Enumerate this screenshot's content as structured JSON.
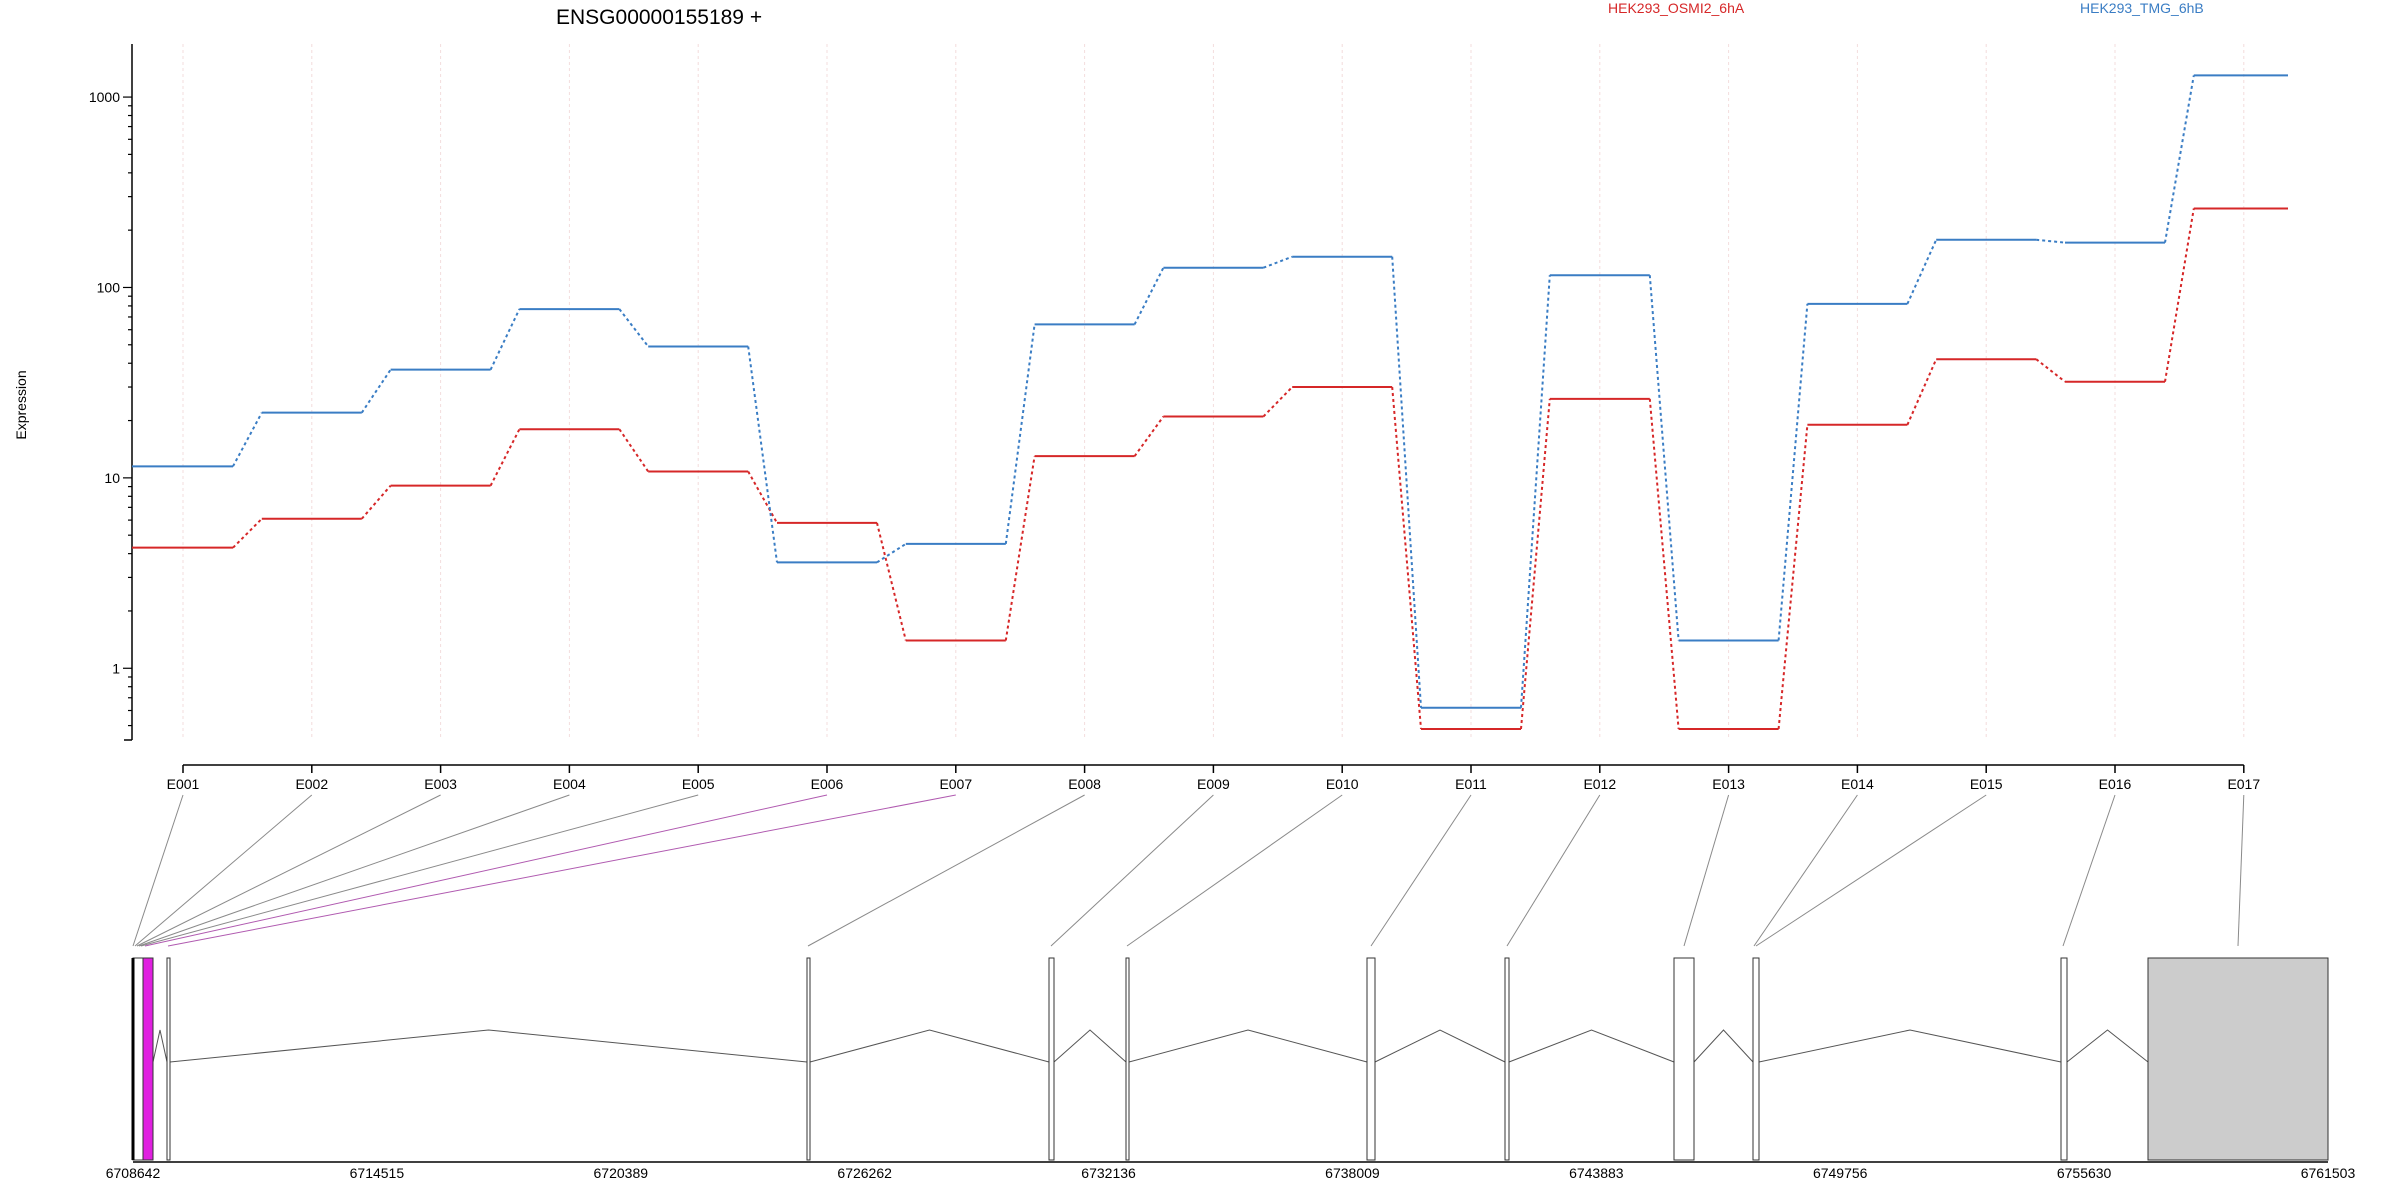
{
  "chart_data": {
    "type": "line",
    "title": "ENSG00000155189 +",
    "xlabel": "",
    "ylabel": "Expression",
    "yscale": "log",
    "ylim": [
      0.42,
      1900
    ],
    "yticks": [
      1,
      10,
      100,
      1000
    ],
    "ytick_labels": [
      "1",
      "10",
      "100",
      "1000"
    ],
    "grid": "vertical dotted at exon positions",
    "legend": "top, horizontal",
    "categories": [
      "E001",
      "E002",
      "E003",
      "E004",
      "E005",
      "E006",
      "E007",
      "E008",
      "E009",
      "E010",
      "E011",
      "E012",
      "E013",
      "E014",
      "E015",
      "E016",
      "E017"
    ],
    "series": [
      {
        "name": "HEK293_OSMI2_6hA",
        "color": "#d62728",
        "values": [
          4.3,
          6.1,
          9.1,
          18,
          10.8,
          5.8,
          1.4,
          13,
          21,
          30,
          0.48,
          26,
          0.48,
          19,
          42,
          32,
          260
        ]
      },
      {
        "name": "HEK293_TMG_6hB",
        "color": "#3a7dc4",
        "values": [
          11.5,
          22,
          37,
          77,
          49,
          3.6,
          4.5,
          64,
          127,
          145,
          0.62,
          116,
          1.4,
          82,
          178,
          172,
          1300
        ]
      }
    ],
    "gene_model": {
      "coordinates": [
        "6708642",
        "6714515",
        "6720389",
        "6726262",
        "6732136",
        "6738009",
        "6743883",
        "6749756",
        "6755630",
        "6761503"
      ],
      "highlight_color": "#e020e0",
      "noncoding_color": "#cccccc"
    }
  }
}
